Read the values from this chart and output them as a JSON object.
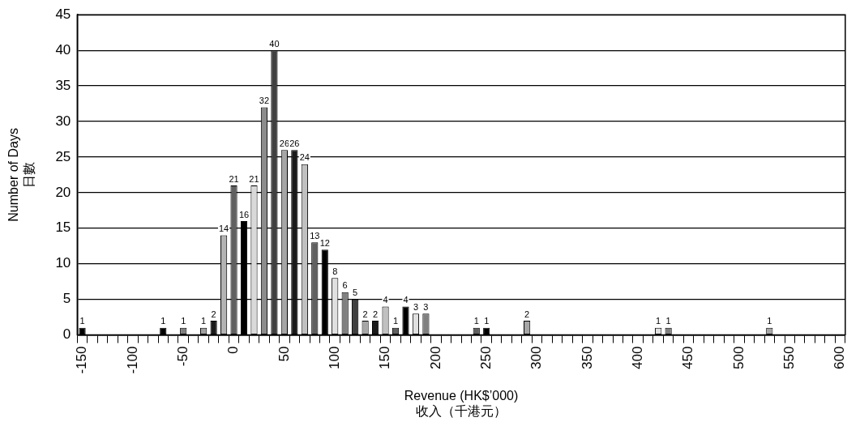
{
  "chart_data": {
    "type": "bar",
    "xlabel": "Revenue (HK$’000)\n收入（千港元）",
    "ylabel": "Number of Days\n日數",
    "categories": [
      "-150",
      null,
      null,
      null,
      null,
      "-100",
      null,
      null,
      null,
      null,
      "-50",
      null,
      null,
      null,
      null,
      "0",
      null,
      null,
      null,
      null,
      "50",
      null,
      null,
      null,
      null,
      "100",
      null,
      null,
      null,
      null,
      "150",
      null,
      null,
      null,
      null,
      "200",
      null,
      null,
      null,
      null,
      "250",
      null,
      null,
      null,
      null,
      "300",
      null,
      null,
      null,
      null,
      "350",
      null,
      null,
      null,
      null,
      "400",
      null,
      null,
      null,
      null,
      "450",
      null,
      null,
      null,
      null,
      "500",
      null,
      null,
      null,
      null,
      "550",
      null,
      null,
      null,
      null,
      "600"
    ],
    "values": [
      1,
      0,
      0,
      0,
      0,
      0,
      0,
      0,
      1,
      0,
      1,
      0,
      1,
      2,
      14,
      21,
      16,
      21,
      32,
      40,
      26,
      26,
      24,
      13,
      12,
      8,
      6,
      5,
      2,
      2,
      4,
      1,
      4,
      3,
      3,
      0,
      0,
      0,
      0,
      1,
      1,
      0,
      0,
      0,
      2,
      0,
      0,
      0,
      0,
      0,
      0,
      0,
      0,
      0,
      0,
      0,
      0,
      1,
      1,
      0,
      0,
      0,
      0,
      0,
      0,
      0,
      0,
      0,
      1,
      0,
      0,
      0,
      0,
      0,
      0,
      0
    ],
    "value_labels": [
      "1",
      null,
      null,
      null,
      null,
      null,
      null,
      null,
      "1",
      null,
      "1",
      null,
      "1",
      "2",
      "14",
      "21",
      "16",
      "21",
      "32",
      "40",
      "26",
      "26",
      "24",
      "13",
      "12",
      "8",
      "6",
      "5",
      "2",
      "2",
      "4",
      "1",
      "4",
      "3",
      "3",
      null,
      null,
      null,
      null,
      "1",
      "1",
      null,
      null,
      null,
      "2",
      null,
      null,
      null,
      null,
      null,
      null,
      null,
      null,
      null,
      null,
      null,
      null,
      "1",
      "1",
      null,
      null,
      null,
      null,
      null,
      null,
      null,
      null,
      null,
      "1",
      null,
      null,
      null,
      null,
      null,
      null,
      null
    ],
    "colors": [
      "#000000",
      "#808080",
      "#808080",
      "#808080",
      "#808080",
      "#808080",
      "#808080",
      "#808080",
      "#000000",
      "#808080",
      "#808080",
      "#808080",
      "#a0a0a0",
      "#1a1a1a",
      "#b3b3b3",
      "#606060",
      "#000000",
      "#d9d9d9",
      "#8c8c8c",
      "#404040",
      "#a6a6a6",
      "#1a1a1a",
      "#c0c0c0",
      "#606060",
      "#000000",
      "#e0e0e0",
      "#808080",
      "#404040",
      "#a6a6a6",
      "#1a1a1a",
      "#c0c0c0",
      "#606060",
      "#000000",
      "#e0e0e0",
      "#808080",
      "#808080",
      "#808080",
      "#808080",
      "#808080",
      "#606060",
      "#000000",
      "#808080",
      "#808080",
      "#808080",
      "#a6a6a6",
      "#808080",
      "#808080",
      "#808080",
      "#808080",
      "#808080",
      "#808080",
      "#808080",
      "#808080",
      "#808080",
      "#808080",
      "#808080",
      "#808080",
      "#e0e0e0",
      "#808080",
      "#808080",
      "#808080",
      "#808080",
      "#808080",
      "#808080",
      "#808080",
      "#808080",
      "#808080",
      "#808080",
      "#a6a6a6",
      "#808080",
      "#808080",
      "#808080",
      "#808080",
      "#808080",
      "#808080",
      "#808080"
    ],
    "ylim": [
      0,
      45
    ],
    "yticks": [
      0,
      5,
      10,
      15,
      20,
      25,
      30,
      35,
      40,
      45
    ],
    "grid": "y",
    "legend": false
  }
}
